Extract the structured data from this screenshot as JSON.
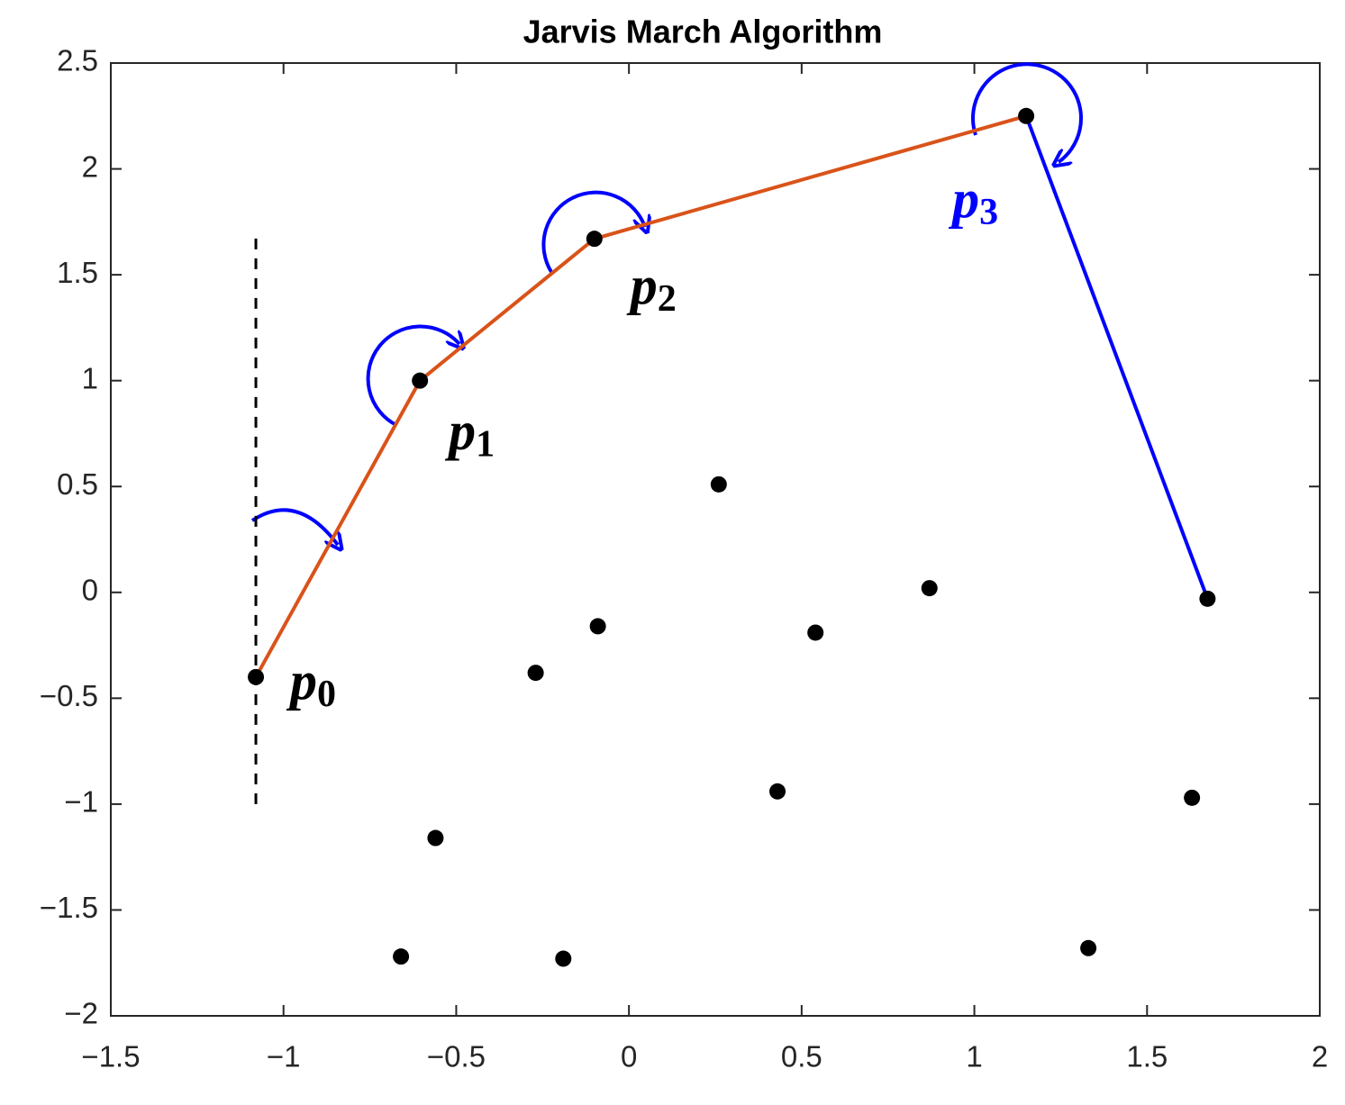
{
  "chart_data": {
    "type": "scatter",
    "title": "Jarvis March Algorithm",
    "xlim": [
      -1.5,
      2
    ],
    "ylim": [
      -2,
      2.5
    ],
    "xticks": [
      {
        "value": -1.5,
        "label": "−1.5"
      },
      {
        "value": -1,
        "label": "−1"
      },
      {
        "value": -0.5,
        "label": "−0.5"
      },
      0,
      0.5,
      1,
      1.5,
      2
    ],
    "yticks": [
      {
        "value": -2,
        "label": "−2"
      },
      {
        "value": -1.5,
        "label": "−1.5"
      },
      {
        "value": -1,
        "label": "−1"
      },
      {
        "value": -0.5,
        "label": "−0.5"
      },
      0,
      0.5,
      1,
      1.5,
      2,
      2.5
    ],
    "series": [
      {
        "style": "dots",
        "color": "#000000",
        "x": [
          -1.08,
          -0.605,
          -0.1,
          1.15,
          1.675,
          0.26,
          0.87,
          -0.09,
          0.54,
          -0.27,
          0.43,
          1.63,
          -0.56,
          -0.66,
          -0.19,
          1.33
        ],
        "values": [
          -0.4,
          1.0,
          1.67,
          2.25,
          -0.03,
          0.51,
          0.02,
          -0.16,
          -0.19,
          -0.38,
          -0.94,
          -0.97,
          -1.16,
          -1.72,
          -1.73,
          -1.68
        ]
      },
      {
        "style": "line",
        "color": "#d95319",
        "x": [
          -1.08,
          -0.605,
          -0.1,
          1.15
        ],
        "values": [
          -0.4,
          1.0,
          1.67,
          2.25
        ]
      },
      {
        "style": "line",
        "color": "#0000ff",
        "x": [
          1.15,
          1.675
        ],
        "values": [
          2.25,
          -0.03
        ]
      },
      {
        "style": "dashed",
        "color": "#000000",
        "x": [
          -1.08,
          -1.08
        ],
        "values": [
          -1,
          1.7
        ]
      }
    ],
    "point_labels": [
      {
        "base": "p",
        "sub": "0",
        "color": "#000000"
      },
      {
        "base": "p",
        "sub": "1",
        "color": "#000000"
      },
      {
        "base": "p",
        "sub": "2",
        "color": "#000000"
      },
      {
        "base": "p",
        "sub": "3",
        "color": "#0000ff"
      }
    ]
  }
}
